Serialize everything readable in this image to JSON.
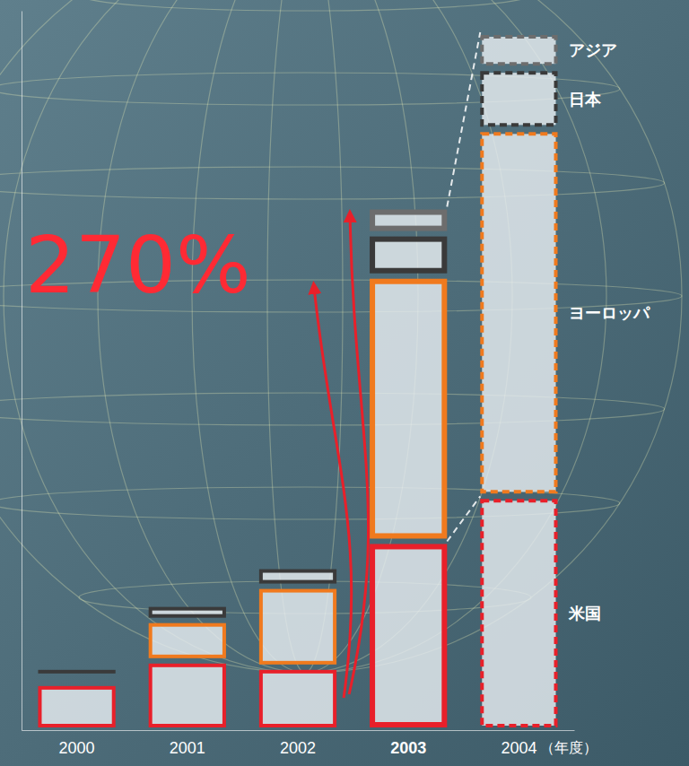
{
  "chart_data": {
    "type": "bar",
    "stacked": true,
    "annotation": "270%",
    "x_label": "（年度）",
    "categories": [
      "2000",
      "2001",
      "2002",
      "2003",
      "2004"
    ],
    "series": [
      {
        "name": "米国",
        "color": "#e8202a",
        "values": [
          52,
          77,
          70,
          210,
          260
        ]
      },
      {
        "name": "ヨーロッパ",
        "color": "#f07a1e",
        "values": [
          8,
          45,
          90,
          295,
          408
        ]
      },
      {
        "name": "日本",
        "color": "#3a3a3a",
        "values": [
          10,
          18,
          22,
          47,
          68
        ]
      },
      {
        "name": "アジア",
        "color": "#6d6d6d",
        "values": [
          6,
          5,
          7,
          30,
          40
        ]
      }
    ],
    "ylim": [
      0,
      800
    ],
    "tick_labels": "x",
    "legend": "right"
  }
}
